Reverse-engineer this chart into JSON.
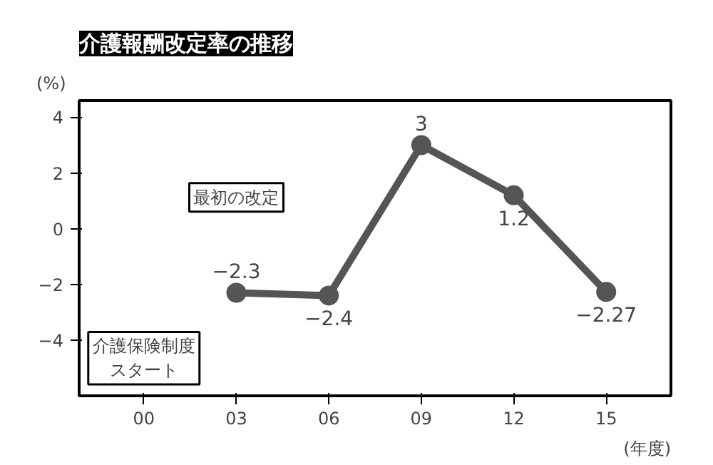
{
  "chart_data": {
    "type": "line",
    "title": "介護報酬改定率の推移",
    "ylabel": "(%)",
    "xlabel": "(年度)",
    "categories": [
      "00",
      "03",
      "06",
      "09",
      "12",
      "15"
    ],
    "series": [
      {
        "color": "#555555",
        "values": [
          null,
          -2.3,
          -2.4,
          3,
          1.2,
          -2.27
        ],
        "value_labels": [
          null,
          "−2.3",
          "−2.4",
          "3",
          "1.2",
          "−2.27"
        ]
      }
    ],
    "ylim": [
      -6,
      4.6
    ],
    "yticks": [
      {
        "value": -4,
        "label": "−4"
      },
      {
        "value": -2,
        "label": "−2"
      },
      0,
      2,
      4
    ],
    "annotations": [
      "最初の改定",
      "介護保険制度スタート"
    ],
    "marker": "circle",
    "line_style": "solid",
    "grid": false
  }
}
